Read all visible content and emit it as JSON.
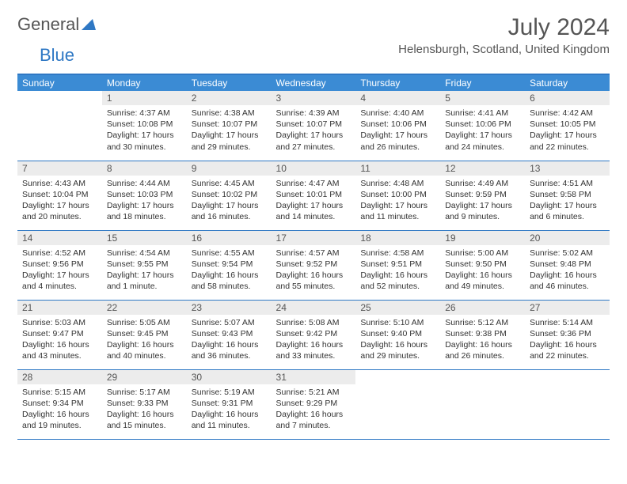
{
  "brand": {
    "text1": "General",
    "text2": "Blue"
  },
  "title": "July 2024",
  "location": "Helensburgh, Scotland, United Kingdom",
  "colors": {
    "header_bg": "#3b8bd4",
    "header_text": "#ffffff",
    "daynum_bg": "#ececec",
    "border": "#2f78c4",
    "text": "#333333",
    "brand_gray": "#555555",
    "brand_blue": "#2f78c4"
  },
  "weekdays": [
    "Sunday",
    "Monday",
    "Tuesday",
    "Wednesday",
    "Thursday",
    "Friday",
    "Saturday"
  ],
  "weeks": [
    [
      null,
      {
        "n": "1",
        "sr": "Sunrise: 4:37 AM",
        "ss": "Sunset: 10:08 PM",
        "d1": "Daylight: 17 hours",
        "d2": "and 30 minutes."
      },
      {
        "n": "2",
        "sr": "Sunrise: 4:38 AM",
        "ss": "Sunset: 10:07 PM",
        "d1": "Daylight: 17 hours",
        "d2": "and 29 minutes."
      },
      {
        "n": "3",
        "sr": "Sunrise: 4:39 AM",
        "ss": "Sunset: 10:07 PM",
        "d1": "Daylight: 17 hours",
        "d2": "and 27 minutes."
      },
      {
        "n": "4",
        "sr": "Sunrise: 4:40 AM",
        "ss": "Sunset: 10:06 PM",
        "d1": "Daylight: 17 hours",
        "d2": "and 26 minutes."
      },
      {
        "n": "5",
        "sr": "Sunrise: 4:41 AM",
        "ss": "Sunset: 10:06 PM",
        "d1": "Daylight: 17 hours",
        "d2": "and 24 minutes."
      },
      {
        "n": "6",
        "sr": "Sunrise: 4:42 AM",
        "ss": "Sunset: 10:05 PM",
        "d1": "Daylight: 17 hours",
        "d2": "and 22 minutes."
      }
    ],
    [
      {
        "n": "7",
        "sr": "Sunrise: 4:43 AM",
        "ss": "Sunset: 10:04 PM",
        "d1": "Daylight: 17 hours",
        "d2": "and 20 minutes."
      },
      {
        "n": "8",
        "sr": "Sunrise: 4:44 AM",
        "ss": "Sunset: 10:03 PM",
        "d1": "Daylight: 17 hours",
        "d2": "and 18 minutes."
      },
      {
        "n": "9",
        "sr": "Sunrise: 4:45 AM",
        "ss": "Sunset: 10:02 PM",
        "d1": "Daylight: 17 hours",
        "d2": "and 16 minutes."
      },
      {
        "n": "10",
        "sr": "Sunrise: 4:47 AM",
        "ss": "Sunset: 10:01 PM",
        "d1": "Daylight: 17 hours",
        "d2": "and 14 minutes."
      },
      {
        "n": "11",
        "sr": "Sunrise: 4:48 AM",
        "ss": "Sunset: 10:00 PM",
        "d1": "Daylight: 17 hours",
        "d2": "and 11 minutes."
      },
      {
        "n": "12",
        "sr": "Sunrise: 4:49 AM",
        "ss": "Sunset: 9:59 PM",
        "d1": "Daylight: 17 hours",
        "d2": "and 9 minutes."
      },
      {
        "n": "13",
        "sr": "Sunrise: 4:51 AM",
        "ss": "Sunset: 9:58 PM",
        "d1": "Daylight: 17 hours",
        "d2": "and 6 minutes."
      }
    ],
    [
      {
        "n": "14",
        "sr": "Sunrise: 4:52 AM",
        "ss": "Sunset: 9:56 PM",
        "d1": "Daylight: 17 hours",
        "d2": "and 4 minutes."
      },
      {
        "n": "15",
        "sr": "Sunrise: 4:54 AM",
        "ss": "Sunset: 9:55 PM",
        "d1": "Daylight: 17 hours",
        "d2": "and 1 minute."
      },
      {
        "n": "16",
        "sr": "Sunrise: 4:55 AM",
        "ss": "Sunset: 9:54 PM",
        "d1": "Daylight: 16 hours",
        "d2": "and 58 minutes."
      },
      {
        "n": "17",
        "sr": "Sunrise: 4:57 AM",
        "ss": "Sunset: 9:52 PM",
        "d1": "Daylight: 16 hours",
        "d2": "and 55 minutes."
      },
      {
        "n": "18",
        "sr": "Sunrise: 4:58 AM",
        "ss": "Sunset: 9:51 PM",
        "d1": "Daylight: 16 hours",
        "d2": "and 52 minutes."
      },
      {
        "n": "19",
        "sr": "Sunrise: 5:00 AM",
        "ss": "Sunset: 9:50 PM",
        "d1": "Daylight: 16 hours",
        "d2": "and 49 minutes."
      },
      {
        "n": "20",
        "sr": "Sunrise: 5:02 AM",
        "ss": "Sunset: 9:48 PM",
        "d1": "Daylight: 16 hours",
        "d2": "and 46 minutes."
      }
    ],
    [
      {
        "n": "21",
        "sr": "Sunrise: 5:03 AM",
        "ss": "Sunset: 9:47 PM",
        "d1": "Daylight: 16 hours",
        "d2": "and 43 minutes."
      },
      {
        "n": "22",
        "sr": "Sunrise: 5:05 AM",
        "ss": "Sunset: 9:45 PM",
        "d1": "Daylight: 16 hours",
        "d2": "and 40 minutes."
      },
      {
        "n": "23",
        "sr": "Sunrise: 5:07 AM",
        "ss": "Sunset: 9:43 PM",
        "d1": "Daylight: 16 hours",
        "d2": "and 36 minutes."
      },
      {
        "n": "24",
        "sr": "Sunrise: 5:08 AM",
        "ss": "Sunset: 9:42 PM",
        "d1": "Daylight: 16 hours",
        "d2": "and 33 minutes."
      },
      {
        "n": "25",
        "sr": "Sunrise: 5:10 AM",
        "ss": "Sunset: 9:40 PM",
        "d1": "Daylight: 16 hours",
        "d2": "and 29 minutes."
      },
      {
        "n": "26",
        "sr": "Sunrise: 5:12 AM",
        "ss": "Sunset: 9:38 PM",
        "d1": "Daylight: 16 hours",
        "d2": "and 26 minutes."
      },
      {
        "n": "27",
        "sr": "Sunrise: 5:14 AM",
        "ss": "Sunset: 9:36 PM",
        "d1": "Daylight: 16 hours",
        "d2": "and 22 minutes."
      }
    ],
    [
      {
        "n": "28",
        "sr": "Sunrise: 5:15 AM",
        "ss": "Sunset: 9:34 PM",
        "d1": "Daylight: 16 hours",
        "d2": "and 19 minutes."
      },
      {
        "n": "29",
        "sr": "Sunrise: 5:17 AM",
        "ss": "Sunset: 9:33 PM",
        "d1": "Daylight: 16 hours",
        "d2": "and 15 minutes."
      },
      {
        "n": "30",
        "sr": "Sunrise: 5:19 AM",
        "ss": "Sunset: 9:31 PM",
        "d1": "Daylight: 16 hours",
        "d2": "and 11 minutes."
      },
      {
        "n": "31",
        "sr": "Sunrise: 5:21 AM",
        "ss": "Sunset: 9:29 PM",
        "d1": "Daylight: 16 hours",
        "d2": "and 7 minutes."
      },
      null,
      null,
      null
    ]
  ]
}
